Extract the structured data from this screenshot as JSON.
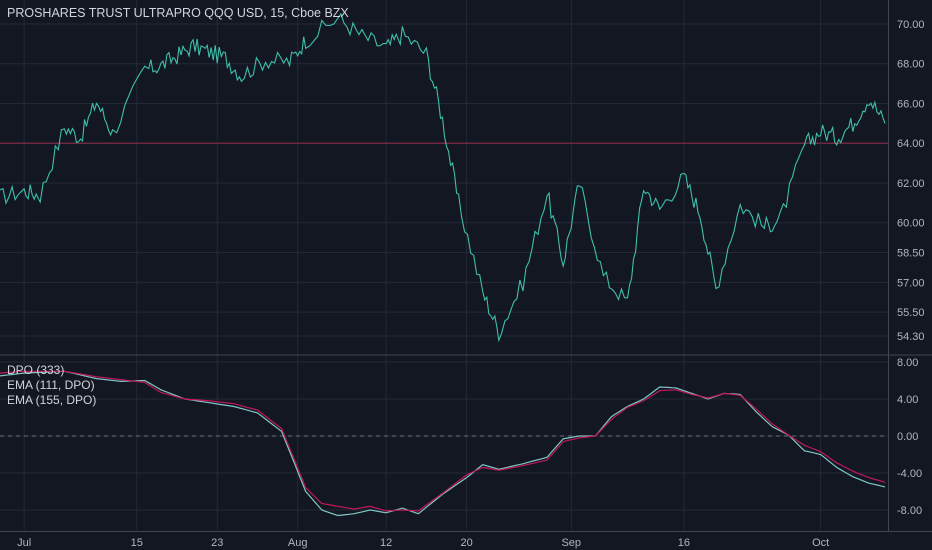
{
  "chart_data": [
    {
      "type": "line",
      "title": "PROSHARES TRUST ULTRAPRO QQQ USD, 15, Cboe BZX",
      "y_ticks": [
        "70.00",
        "68.00",
        "66.00",
        "64.00",
        "62.00",
        "60.00",
        "58.50",
        "57.00",
        "55.50",
        "54.30"
      ],
      "y_tick_values": [
        70,
        68,
        66,
        64,
        62,
        60,
        58.5,
        57,
        55.5,
        54.3
      ],
      "horizontal_line": 64.0,
      "series": [
        {
          "color": "#3fbfaa",
          "x": [
            0,
            3,
            5,
            8,
            10,
            12,
            14,
            18,
            20,
            22,
            24,
            26,
            28,
            30,
            33,
            36,
            38,
            42,
            45,
            48,
            50,
            53,
            55,
            57,
            60,
            62,
            65,
            68,
            70,
            72,
            75,
            78,
            80,
            82,
            85,
            87,
            89,
            92,
            95,
            97,
            100,
            102,
            104,
            106,
            108,
            110
          ],
          "values": [
            61.3,
            61.6,
            61.4,
            64.8,
            64.3,
            66.1,
            64.5,
            67.7,
            67.9,
            68.4,
            68.9,
            68.6,
            68.3,
            67.4,
            68.2,
            68.1,
            69.2,
            70.3,
            69.4,
            68.8,
            69.5,
            68.5,
            65.2,
            61.0,
            56.5,
            54.5,
            57.0,
            61.5,
            58.0,
            62.0,
            57.3,
            56.0,
            61.8,
            60.7,
            62.3,
            60.5,
            56.7,
            60.9,
            59.8,
            60.2,
            63.9,
            64.6,
            64.3,
            65.0,
            66.3,
            65.0
          ]
        }
      ]
    },
    {
      "type": "line",
      "y_ticks": [
        "8.00",
        "4.00",
        "0.00",
        "-4.00",
        "-8.00"
      ],
      "y_tick_values": [
        8,
        4,
        0,
        -4,
        -8
      ],
      "zero_line": 0,
      "series": [
        {
          "name": "EMA (111, DPO)",
          "color": "#7fc7c7",
          "x": [
            0,
            3,
            8,
            12,
            15,
            18,
            20,
            23,
            26,
            29,
            32,
            35,
            38,
            40,
            42,
            44,
            46,
            48,
            50,
            52,
            55,
            58,
            60,
            62,
            65,
            68,
            70,
            72,
            74,
            76,
            78,
            80,
            82,
            84,
            86,
            88,
            90,
            92,
            94,
            96,
            98,
            100,
            102,
            104,
            106,
            108,
            110
          ],
          "values": [
            6.5,
            6.8,
            7.0,
            6.2,
            5.9,
            6.0,
            5.0,
            4.0,
            3.6,
            3.2,
            2.5,
            0.5,
            -6.0,
            -8.0,
            -8.6,
            -8.4,
            -8.0,
            -8.3,
            -7.8,
            -8.4,
            -6.3,
            -4.5,
            -3.1,
            -3.6,
            -3.0,
            -2.3,
            -0.3,
            0.0,
            0.0,
            2.1,
            3.2,
            4.0,
            5.3,
            5.2,
            4.6,
            4.0,
            4.6,
            4.5,
            2.6,
            1.0,
            0.1,
            -1.6,
            -2.0,
            -3.4,
            -4.4,
            -5.1,
            -5.5
          ]
        },
        {
          "name": "EMA (155, DPO)",
          "color": "#c2185b",
          "x": [
            0,
            3,
            8,
            12,
            15,
            18,
            20,
            23,
            26,
            29,
            32,
            35,
            38,
            40,
            42,
            44,
            46,
            48,
            50,
            52,
            55,
            58,
            60,
            62,
            65,
            68,
            70,
            72,
            74,
            76,
            78,
            80,
            82,
            84,
            86,
            88,
            90,
            92,
            94,
            96,
            98,
            100,
            102,
            104,
            106,
            108,
            110
          ],
          "values": [
            6.8,
            7.0,
            7.0,
            6.4,
            6.1,
            5.8,
            4.7,
            4.0,
            3.8,
            3.5,
            2.8,
            0.8,
            -5.6,
            -7.3,
            -7.6,
            -7.9,
            -7.6,
            -8.1,
            -8.0,
            -8.1,
            -6.2,
            -4.2,
            -3.4,
            -3.7,
            -3.2,
            -2.6,
            -0.6,
            -0.2,
            0.0,
            1.8,
            3.1,
            3.8,
            4.9,
            5.0,
            4.5,
            4.1,
            4.6,
            4.4,
            2.9,
            1.3,
            0.1,
            -1.0,
            -1.7,
            -2.9,
            -3.8,
            -4.5,
            -5.0
          ]
        }
      ],
      "legend": [
        "DPO (333)",
        "EMA (111, DPO)",
        "EMA (155, DPO)"
      ]
    }
  ],
  "x_axis": {
    "labels": [
      "Jul",
      "15",
      "23",
      "Aug",
      "12",
      "20",
      "Sep",
      "16",
      "Oct"
    ],
    "label_index": [
      3,
      17,
      27,
      37,
      48,
      58,
      71,
      85,
      102
    ],
    "x_max_index": 110
  },
  "colors": {
    "background": "#131722",
    "grid": "#242838",
    "price_line": "#3fbfaa",
    "ema111": "#7fc7c7",
    "ema155": "#c2185b",
    "hline": "#7e2a45"
  }
}
